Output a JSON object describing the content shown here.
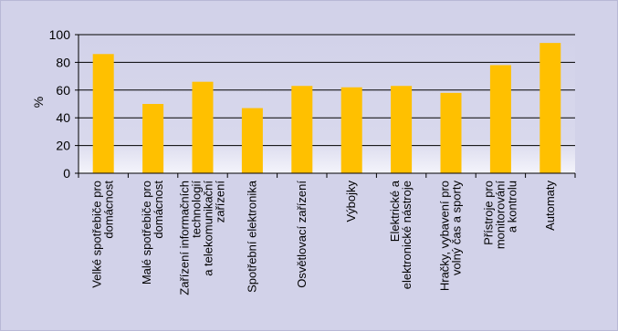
{
  "chart_data": {
    "type": "bar",
    "title": "",
    "xlabel": "",
    "ylabel": "%",
    "ylim": [
      0,
      100
    ],
    "yticks": [
      0,
      20,
      40,
      60,
      80,
      100
    ],
    "grid": true,
    "categories": [
      [
        "Velké spotřebiče pro",
        "domácnost"
      ],
      [
        "Malé spotřebiče pro",
        "domácnost"
      ],
      [
        "Zařízení informačních",
        "technologií",
        "a telekomunikační",
        "zařízení"
      ],
      [
        "Spotřební elektronika"
      ],
      [
        "Osvětlovací zařízení"
      ],
      [
        "Výbojky"
      ],
      [
        "Elektrické a",
        "elektronické nástroje"
      ],
      [
        "Hračky, vybavení pro",
        "volný čas a sporty"
      ],
      [
        "Přístroje pro",
        "monitorování",
        "a kontrolu"
      ],
      [
        "Automaty"
      ]
    ],
    "values": [
      86,
      50,
      66,
      47,
      63,
      62,
      63,
      58,
      78,
      94
    ],
    "colors": {
      "bar": "#ffc000",
      "background": "#d2d2e9",
      "gridline": "#000000"
    }
  }
}
